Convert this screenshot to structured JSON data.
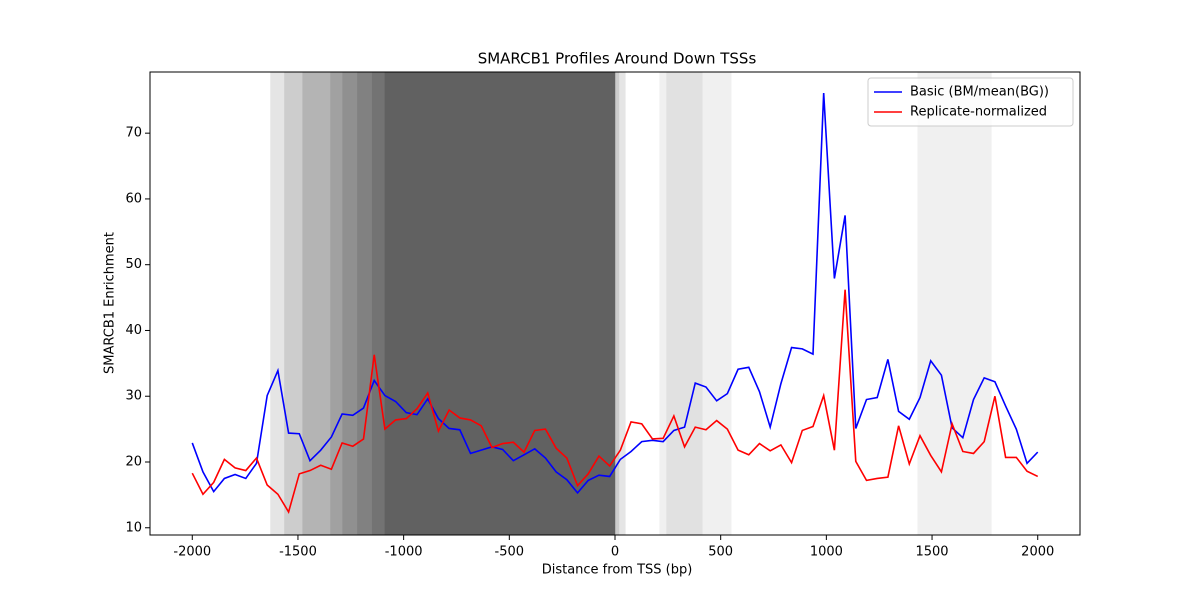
{
  "chart_data": {
    "type": "line",
    "title": "SMARCB1 Profiles Around Down TSSs",
    "xlabel": "Distance from TSS (bp)",
    "ylabel": "SMARCB1 Enrichment",
    "xlim": [
      -2200,
      2200
    ],
    "ylim": [
      8.9,
      79.3
    ],
    "xticks": [
      -2000,
      -1500,
      -1000,
      -500,
      0,
      500,
      1000,
      1500,
      2000
    ],
    "yticks": [
      10,
      20,
      30,
      40,
      50,
      60,
      70
    ],
    "legend": "upper right",
    "shaded_regions": [
      {
        "x": [
          -1631,
          50
        ],
        "opacity": 0.1
      },
      {
        "x": [
          -1565,
          20
        ],
        "opacity": 0.1
      },
      {
        "x": [
          -1479,
          5
        ],
        "opacity": 0.12
      },
      {
        "x": [
          -1347,
          0
        ],
        "opacity": 0.1
      },
      {
        "x": [
          -1290,
          0
        ],
        "opacity": 0.1
      },
      {
        "x": [
          -1220,
          0
        ],
        "opacity": 0.1
      },
      {
        "x": [
          -1150,
          0
        ],
        "opacity": 0.1
      },
      {
        "x": [
          -1090,
          0
        ],
        "opacity": 0.15
      },
      {
        "x": [
          210,
          551
        ],
        "opacity": 0.06
      },
      {
        "x": [
          243,
          414
        ],
        "opacity": 0.06
      },
      {
        "x": [
          1431,
          1782
        ],
        "opacity": 0.06
      }
    ],
    "x": [
      -2000,
      -1949.4,
      -1898.7,
      -1848.1,
      -1797.5,
      -1746.8,
      -1696.2,
      -1645.6,
      -1594.9,
      -1544.3,
      -1493.7,
      -1443.0,
      -1392.4,
      -1341.8,
      -1291.1,
      -1240.5,
      -1189.9,
      -1139.2,
      -1088.6,
      -1038.0,
      -987.3,
      -936.7,
      -886.1,
      -835.4,
      -784.8,
      -734.2,
      -683.5,
      -632.9,
      -582.3,
      -531.6,
      -481.0,
      -430.4,
      -379.7,
      -329.1,
      -278.5,
      -227.8,
      -177.2,
      -126.6,
      -75.9,
      -25.3,
      25.3,
      75.9,
      126.6,
      177.2,
      227.8,
      278.5,
      329.1,
      379.7,
      430.4,
      481.0,
      531.6,
      582.3,
      632.9,
      683.5,
      734.2,
      784.8,
      835.4,
      886.1,
      936.7,
      987.3,
      1038.0,
      1088.6,
      1139.2,
      1189.9,
      1240.5,
      1291.1,
      1341.8,
      1392.4,
      1443.0,
      1493.7,
      1544.3,
      1594.9,
      1645.6,
      1696.2,
      1746.8,
      1797.5,
      1848.1,
      1898.7,
      1949.4,
      2000
    ],
    "series": [
      {
        "name": "Basic (BM/mean(BG))",
        "color": "#0000ff",
        "values": [
          22.9,
          18.5,
          15.5,
          17.5,
          18.1,
          17.5,
          19.8,
          30.1,
          33.9,
          24.4,
          24.3,
          20.2,
          21.8,
          23.8,
          27.3,
          27.1,
          28.2,
          32.4,
          30.1,
          29.2,
          27.5,
          27.2,
          29.6,
          26.6,
          25.1,
          24.9,
          21.3,
          21.8,
          22.3,
          21.9,
          20.2,
          21.1,
          22.0,
          20.6,
          18.5,
          17.3,
          15.3,
          17.2,
          18.0,
          17.8,
          20.4,
          21.6,
          23.1,
          23.3,
          23.1,
          24.8,
          25.3,
          32.0,
          31.4,
          29.3,
          30.4,
          34.1,
          34.4,
          30.7,
          25.3,
          31.9,
          37.4,
          37.2,
          36.4,
          76.1,
          47.9,
          57.5,
          25.1,
          29.5,
          29.8,
          35.6,
          27.7,
          26.5,
          29.8,
          35.4,
          33.2,
          25.2,
          23.7,
          29.5,
          32.8,
          32.2,
          28.5,
          25.0,
          19.8,
          21.5
        ]
      },
      {
        "name": "Replicate-normalized",
        "color": "#ff0000",
        "values": [
          18.3,
          15.1,
          16.9,
          20.4,
          19.1,
          18.7,
          20.6,
          16.5,
          15.1,
          12.4,
          18.2,
          18.7,
          19.5,
          18.9,
          22.9,
          22.4,
          23.5,
          36.3,
          25.0,
          26.4,
          26.6,
          28.1,
          30.5,
          24.7,
          27.9,
          26.7,
          26.4,
          25.5,
          22.2,
          22.8,
          23.0,
          21.5,
          24.8,
          25.0,
          22.1,
          20.6,
          16.4,
          18.2,
          20.9,
          19.4,
          21.8,
          26.1,
          25.8,
          23.5,
          23.6,
          27.0,
          22.3,
          25.3,
          24.9,
          26.3,
          25.0,
          21.8,
          21.1,
          22.8,
          21.7,
          22.6,
          19.9,
          24.8,
          25.4,
          30.1,
          21.8,
          46.2,
          20.1,
          17.2,
          17.5,
          17.7,
          25.5,
          19.7,
          24.0,
          21.0,
          18.5,
          25.8,
          21.6,
          21.3,
          23.1,
          30.0,
          20.7,
          20.7,
          18.6,
          17.8
        ]
      }
    ]
  }
}
